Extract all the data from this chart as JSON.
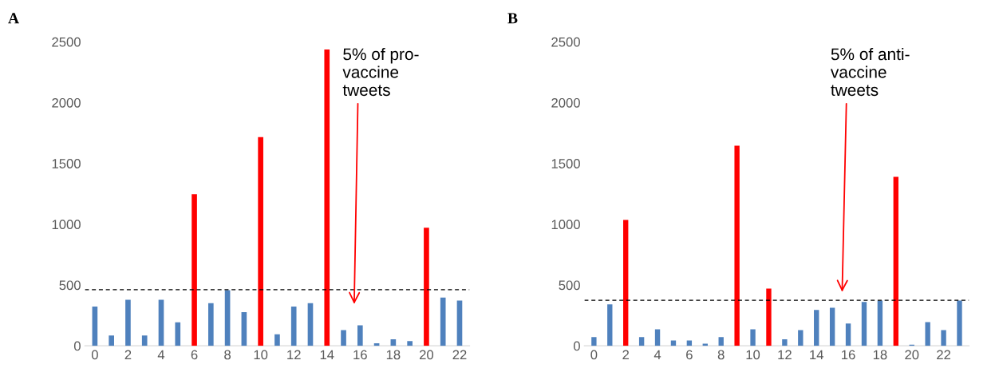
{
  "chart_data": [
    {
      "type": "bar",
      "title": "A",
      "categories": [
        "0",
        null,
        "2",
        null,
        "4",
        null,
        "6",
        null,
        "8",
        null,
        "10",
        null,
        "12",
        null,
        "14",
        null,
        "16",
        null,
        "18",
        null,
        "20",
        null,
        "22"
      ],
      "values": [
        322,
        84,
        379,
        84,
        379,
        193,
        1247,
        351,
        458,
        277,
        1716,
        95,
        322,
        351,
        2437,
        129,
        168,
        20,
        54,
        39,
        971,
        397,
        372
      ],
      "colors": [
        "#4f81bd",
        "#4f81bd",
        "#4f81bd",
        "#4f81bd",
        "#4f81bd",
        "#4f81bd",
        "#ff0000",
        "#4f81bd",
        "#4f81bd",
        "#4f81bd",
        "#ff0000",
        "#4f81bd",
        "#4f81bd",
        "#4f81bd",
        "#ff0000",
        "#4f81bd",
        "#4f81bd",
        "#4f81bd",
        "#4f81bd",
        "#4f81bd",
        "#ff0000",
        "#4f81bd",
        "#4f81bd"
      ],
      "ylim": [
        0,
        2500
      ],
      "yticks": [
        0,
        500,
        1000,
        1500,
        2000,
        2500
      ],
      "grid": false,
      "ref_lines": [
        {
          "axis": "y",
          "value": 462,
          "color": "#000000",
          "line_style": "dashed"
        }
      ],
      "annotations": [
        "5% of pro-\nvaccine\ntweets"
      ]
    },
    {
      "type": "bar",
      "title": "B",
      "categories": [
        "0",
        null,
        "2",
        null,
        "4",
        null,
        "6",
        null,
        "8",
        null,
        "10",
        null,
        "12",
        null,
        "14",
        null,
        "16",
        null,
        "18",
        null,
        "20",
        null,
        "22",
        null
      ],
      "values": [
        71,
        341,
        1035,
        71,
        136,
        43,
        43,
        17,
        71,
        1646,
        136,
        471,
        54,
        129,
        295,
        313,
        183,
        360,
        372,
        1390,
        10,
        194,
        129,
        372
      ],
      "colors": [
        "#4f81bd",
        "#4f81bd",
        "#ff0000",
        "#4f81bd",
        "#4f81bd",
        "#4f81bd",
        "#4f81bd",
        "#4f81bd",
        "#4f81bd",
        "#ff0000",
        "#4f81bd",
        "#ff0000",
        "#4f81bd",
        "#4f81bd",
        "#4f81bd",
        "#4f81bd",
        "#4f81bd",
        "#4f81bd",
        "#4f81bd",
        "#ff0000",
        "#4f81bd",
        "#4f81bd",
        "#4f81bd",
        "#4f81bd"
      ],
      "ylim": [
        0,
        2500
      ],
      "yticks": [
        0,
        500,
        1000,
        1500,
        2000,
        2500
      ],
      "grid": false,
      "ref_lines": [
        {
          "axis": "y",
          "value": 375,
          "color": "#000000",
          "line_style": "dashed"
        }
      ],
      "annotations": [
        "5% of anti-\nvaccine\ntweets"
      ]
    }
  ]
}
